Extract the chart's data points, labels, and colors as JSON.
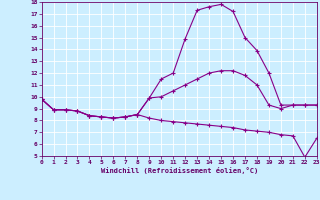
{
  "xlabel": "Windchill (Refroidissement éolien,°C)",
  "bg_color": "#cceeff",
  "grid_color": "#ffffff",
  "line_color": "#880088",
  "xlim": [
    0,
    23
  ],
  "ylim": [
    5,
    18
  ],
  "yticks": [
    5,
    6,
    7,
    8,
    9,
    10,
    11,
    12,
    13,
    14,
    15,
    16,
    17,
    18
  ],
  "xticks": [
    0,
    1,
    2,
    3,
    4,
    5,
    6,
    7,
    8,
    9,
    10,
    11,
    12,
    13,
    14,
    15,
    16,
    17,
    18,
    19,
    20,
    21,
    22,
    23
  ],
  "line1_x": [
    0,
    1,
    2,
    3,
    4,
    5,
    6,
    7,
    8,
    9,
    10,
    11,
    12,
    13,
    14,
    15,
    16,
    17,
    18,
    19,
    20,
    21,
    22,
    23
  ],
  "line1_y": [
    9.8,
    8.9,
    8.9,
    8.8,
    8.4,
    8.3,
    8.2,
    8.3,
    8.5,
    9.9,
    11.5,
    12.0,
    14.9,
    17.3,
    17.6,
    17.8,
    17.2,
    15.0,
    13.9,
    12.0,
    9.3,
    9.3,
    9.3,
    9.3
  ],
  "line2_x": [
    0,
    1,
    2,
    3,
    4,
    5,
    6,
    7,
    8,
    9,
    10,
    11,
    12,
    13,
    14,
    15,
    16,
    17,
    18,
    19,
    20,
    21,
    22,
    23
  ],
  "line2_y": [
    9.8,
    8.9,
    8.9,
    8.8,
    8.4,
    8.3,
    8.2,
    8.3,
    8.5,
    9.9,
    10.0,
    10.5,
    11.0,
    11.5,
    12.0,
    12.2,
    12.2,
    11.8,
    11.0,
    9.3,
    9.0,
    9.3,
    9.3,
    9.3
  ],
  "line3_x": [
    0,
    1,
    2,
    3,
    4,
    5,
    6,
    7,
    8,
    9,
    10,
    11,
    12,
    13,
    14,
    15,
    16,
    17,
    18,
    19,
    20,
    21,
    22,
    23
  ],
  "line3_y": [
    9.8,
    8.9,
    8.9,
    8.8,
    8.4,
    8.3,
    8.2,
    8.3,
    8.5,
    8.2,
    8.0,
    7.9,
    7.8,
    7.7,
    7.6,
    7.5,
    7.4,
    7.2,
    7.1,
    7.0,
    6.8,
    6.7,
    4.9,
    6.5
  ]
}
